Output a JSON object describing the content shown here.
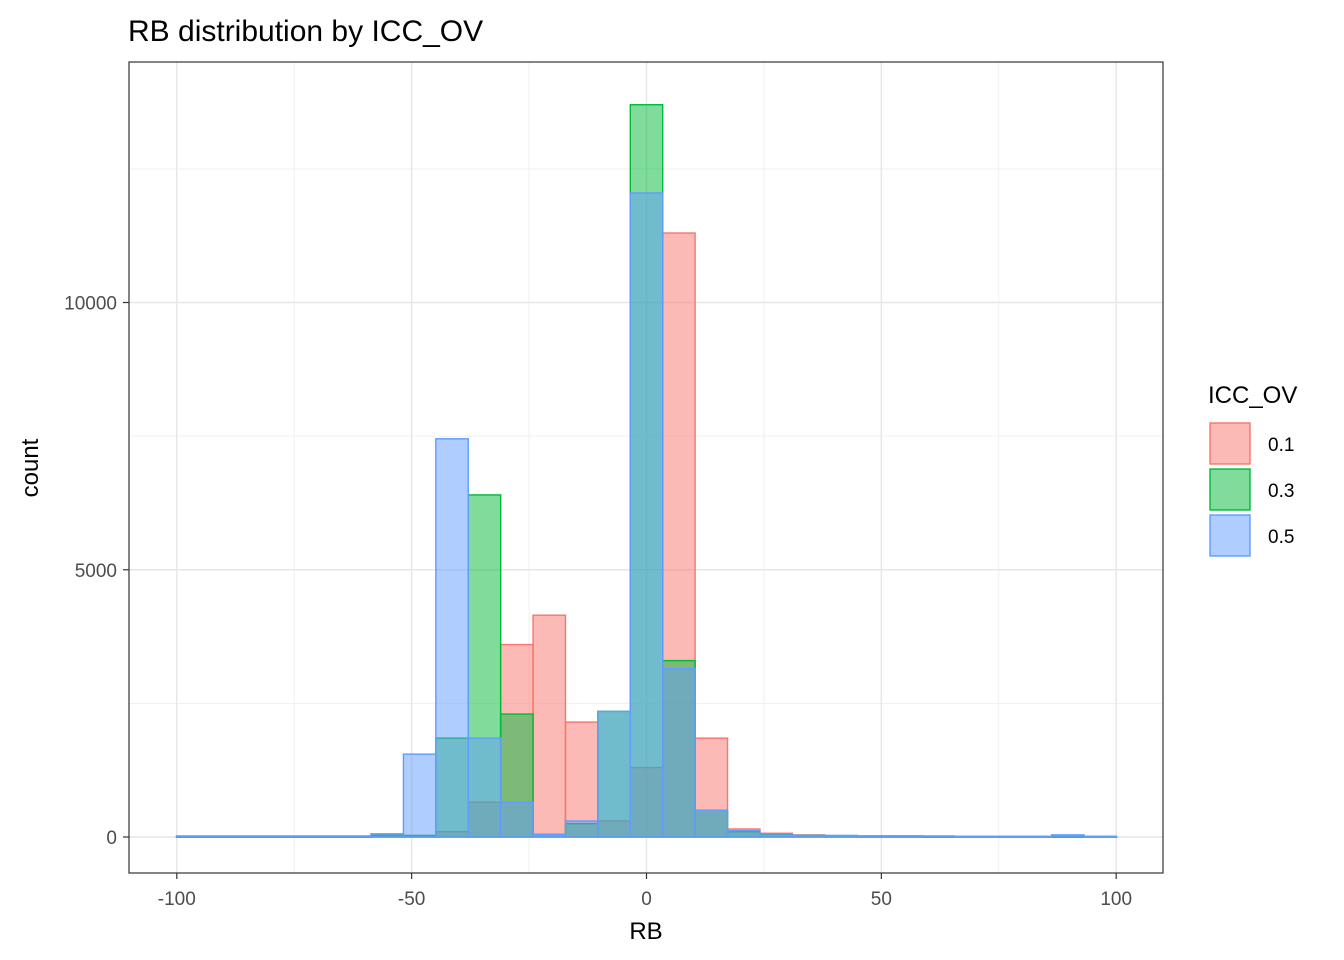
{
  "chart_data": {
    "type": "bar",
    "subtype": "overlapping-histogram",
    "title": "RB distribution by ICC_OV",
    "xlabel": "RB",
    "ylabel": "count",
    "xlim": [
      -100,
      100
    ],
    "ylim": [
      0,
      13500
    ],
    "x_ticks": [
      -100,
      -50,
      0,
      50,
      100
    ],
    "x_tick_labels": [
      "-100",
      "-50",
      "0",
      "50",
      "100"
    ],
    "y_ticks": [
      0,
      5000,
      10000
    ],
    "y_tick_labels": [
      "0",
      "5000",
      "10000"
    ],
    "grid": true,
    "legend": {
      "title": "ICC_OV",
      "position": "right"
    },
    "bin_width": 6.9,
    "bin_centers": [
      -96.6,
      -89.7,
      -82.8,
      -75.9,
      -69.0,
      -62.1,
      -55.2,
      -48.3,
      -41.4,
      -34.5,
      -27.6,
      -20.7,
      -13.8,
      -6.9,
      0.0,
      6.9,
      13.8,
      20.7,
      27.6,
      34.5,
      41.4,
      48.3,
      55.2,
      62.1,
      69.0,
      75.9,
      82.8,
      89.7,
      96.6
    ],
    "series": [
      {
        "name": "0.1",
        "fill": "#F8766D",
        "values": [
          10,
          10,
          10,
          10,
          10,
          10,
          30,
          20,
          100,
          650,
          3600,
          4150,
          2150,
          300,
          1300,
          11300,
          1850,
          150,
          70,
          40,
          20,
          10,
          10,
          10,
          10,
          10,
          10,
          10,
          10
        ]
      },
      {
        "name": "0.3",
        "fill": "#00BA38",
        "values": [
          10,
          10,
          10,
          10,
          10,
          10,
          30,
          30,
          1850,
          6400,
          2300,
          50,
          250,
          2350,
          13700,
          3300,
          500,
          100,
          50,
          30,
          20,
          20,
          20,
          10,
          10,
          10,
          10,
          10,
          10
        ]
      },
      {
        "name": "0.5",
        "fill": "#619CFF",
        "values": [
          20,
          20,
          20,
          20,
          20,
          20,
          60,
          1550,
          7450,
          1850,
          650,
          50,
          300,
          2350,
          12050,
          3150,
          500,
          120,
          60,
          30,
          30,
          20,
          20,
          20,
          10,
          10,
          10,
          40,
          10
        ]
      }
    ]
  }
}
